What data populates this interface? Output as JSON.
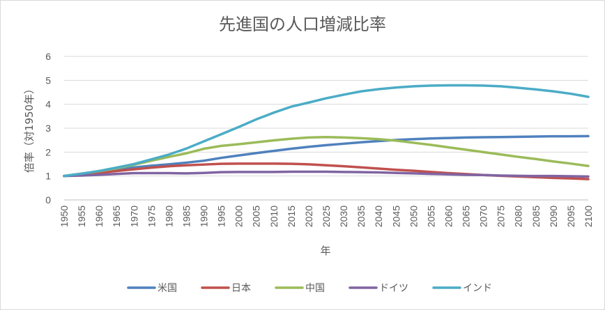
{
  "chart_data": {
    "type": "line",
    "title": "先進国の人口増減比率",
    "xlabel": "年",
    "ylabel": "倍率（対1950年）",
    "ylim": [
      0,
      6
    ],
    "yticks": [
      "0",
      "1",
      "2",
      "3",
      "4",
      "5",
      "6"
    ],
    "x": [
      1950,
      1955,
      1960,
      1965,
      1970,
      1975,
      1980,
      1985,
      1990,
      1995,
      2000,
      2005,
      2010,
      2015,
      2020,
      2025,
      2030,
      2035,
      2040,
      2045,
      2050,
      2055,
      2060,
      2065,
      2070,
      2075,
      2080,
      2085,
      2090,
      2095,
      2100
    ],
    "grid": true,
    "legend_position": "bottom",
    "series": [
      {
        "name": "米国",
        "color": "#4f81bd",
        "values": [
          1.0,
          1.09,
          1.19,
          1.28,
          1.36,
          1.43,
          1.49,
          1.56,
          1.64,
          1.76,
          1.86,
          1.96,
          2.05,
          2.14,
          2.22,
          2.29,
          2.35,
          2.41,
          2.46,
          2.51,
          2.54,
          2.57,
          2.59,
          2.61,
          2.62,
          2.63,
          2.64,
          2.65,
          2.66,
          2.66,
          2.67
        ]
      },
      {
        "name": "日本",
        "color": "#c0504d",
        "values": [
          1.0,
          1.07,
          1.13,
          1.21,
          1.28,
          1.35,
          1.41,
          1.45,
          1.48,
          1.51,
          1.52,
          1.52,
          1.52,
          1.51,
          1.49,
          1.45,
          1.41,
          1.36,
          1.31,
          1.26,
          1.22,
          1.17,
          1.12,
          1.08,
          1.04,
          1.01,
          0.98,
          0.95,
          0.92,
          0.9,
          0.87
        ]
      },
      {
        "name": "中国",
        "color": "#9bbb59",
        "values": [
          1.0,
          1.1,
          1.2,
          1.32,
          1.47,
          1.64,
          1.8,
          1.95,
          2.14,
          2.26,
          2.33,
          2.41,
          2.49,
          2.56,
          2.61,
          2.63,
          2.61,
          2.58,
          2.54,
          2.48,
          2.39,
          2.3,
          2.2,
          2.1,
          2.0,
          1.9,
          1.8,
          1.71,
          1.61,
          1.52,
          1.42
        ]
      },
      {
        "name": "ドイツ",
        "color": "#8064a2",
        "values": [
          1.0,
          1.02,
          1.05,
          1.09,
          1.12,
          1.12,
          1.12,
          1.11,
          1.13,
          1.16,
          1.17,
          1.17,
          1.17,
          1.18,
          1.18,
          1.18,
          1.17,
          1.16,
          1.15,
          1.13,
          1.11,
          1.09,
          1.07,
          1.05,
          1.04,
          1.02,
          1.01,
          1.0,
          1.0,
          0.99,
          0.98
        ]
      },
      {
        "name": "インド",
        "color": "#4bacc6",
        "values": [
          1.0,
          1.1,
          1.21,
          1.35,
          1.5,
          1.7,
          1.9,
          2.15,
          2.45,
          2.75,
          3.05,
          3.37,
          3.65,
          3.9,
          4.07,
          4.25,
          4.4,
          4.54,
          4.63,
          4.7,
          4.75,
          4.78,
          4.79,
          4.79,
          4.78,
          4.75,
          4.69,
          4.62,
          4.54,
          4.44,
          4.31
        ]
      }
    ]
  }
}
